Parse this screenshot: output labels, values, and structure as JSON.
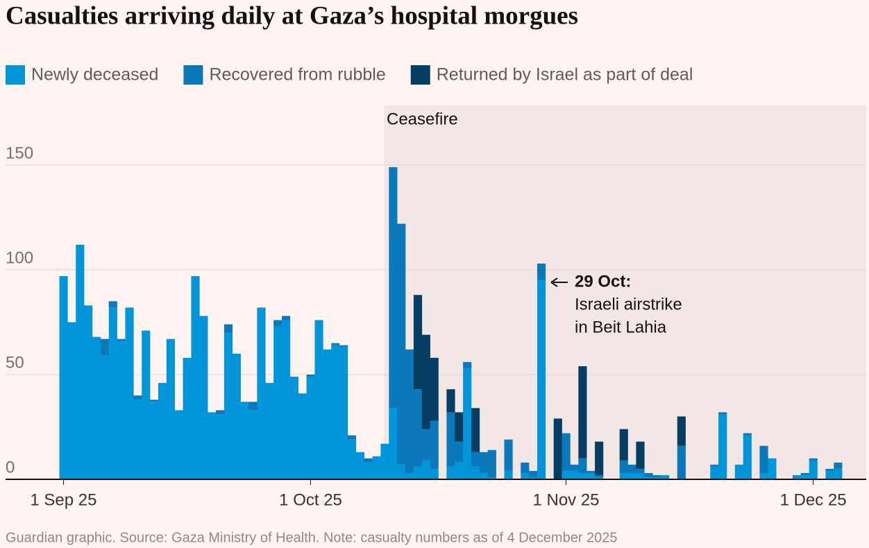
{
  "chart_data": {
    "type": "stacked_bar",
    "title": "Casualties arriving daily at Gaza’s hospital morgues",
    "shaded_label": "Ceasefire",
    "annotation": {
      "title": "29 Oct:",
      "lines": [
        "Israeli airstrike",
        "in Beit Lahia"
      ]
    },
    "source": "Guardian graphic. Source: Gaza Ministry of Health. Note: casualty numbers as of 4 December 2025",
    "categories": [
      "1 Sep 25",
      null,
      null,
      null,
      null,
      null,
      null,
      null,
      null,
      null,
      null,
      null,
      null,
      null,
      null,
      null,
      null,
      null,
      null,
      null,
      null,
      null,
      null,
      null,
      null,
      null,
      null,
      null,
      null,
      null,
      "1 Oct 25",
      null,
      null,
      null,
      null,
      null,
      null,
      null,
      null,
      null,
      null,
      null,
      null,
      null,
      null,
      null,
      null,
      null,
      null,
      null,
      null,
      null,
      null,
      null,
      null,
      null,
      null,
      null,
      null,
      null,
      null,
      "1 Nov 25",
      null,
      null,
      null,
      null,
      null,
      null,
      null,
      null,
      null,
      null,
      null,
      null,
      null,
      null,
      null,
      null,
      null,
      null,
      null,
      null,
      null,
      null,
      null,
      null,
      null,
      null,
      null,
      null,
      null,
      "1 Dec 25",
      null,
      null,
      null
    ],
    "series": [
      {
        "name": "Newly deceased",
        "color": "#0096d9",
        "values": [
          97,
          75,
          112,
          83,
          68,
          59,
          82,
          66,
          82,
          38,
          71,
          37,
          46,
          67,
          33,
          58,
          97,
          78,
          32,
          31,
          70,
          60,
          37,
          33,
          82,
          46,
          73,
          76,
          49,
          41,
          49,
          76,
          62,
          64,
          63,
          19,
          13,
          8,
          11,
          17,
          34,
          7,
          3,
          6,
          9,
          5,
          0,
          6,
          8,
          53,
          6,
          3,
          1,
          0,
          4,
          0,
          3,
          1,
          95,
          0,
          0,
          4,
          4,
          3,
          3,
          1,
          0,
          0,
          3,
          3,
          3,
          1,
          1,
          2,
          0,
          0,
          0,
          0,
          0,
          6,
          31,
          0,
          7,
          21,
          0,
          3,
          10,
          0,
          0,
          2,
          2,
          9,
          0,
          4,
          5
        ]
      },
      {
        "name": "Recovered from rubble",
        "color": "#0a78b9",
        "values": [
          0,
          0,
          0,
          0,
          0,
          8,
          3,
          1,
          0,
          2,
          0,
          1,
          0,
          0,
          0,
          0,
          0,
          0,
          0,
          2,
          4,
          0,
          0,
          4,
          0,
          0,
          3,
          2,
          0,
          0,
          1,
          0,
          0,
          1,
          1,
          2,
          0,
          2,
          0,
          0,
          115,
          115,
          59,
          37,
          15,
          23,
          0,
          26,
          10,
          3,
          7,
          10,
          13,
          0,
          15,
          0,
          5,
          3,
          8,
          0,
          0,
          18,
          3,
          7,
          1,
          1,
          0,
          0,
          6,
          4,
          2,
          2,
          1,
          0,
          0,
          16,
          0,
          0,
          0,
          1,
          1,
          0,
          0,
          1,
          0,
          13,
          0,
          0,
          0,
          0,
          1,
          1,
          0,
          1,
          3
        ]
      },
      {
        "name": "Returned by Israel as part of deal",
        "color": "#063d63",
        "values": [
          0,
          0,
          0,
          0,
          0,
          0,
          0,
          0,
          0,
          0,
          0,
          0,
          0,
          0,
          0,
          0,
          0,
          0,
          0,
          0,
          0,
          0,
          0,
          0,
          0,
          0,
          0,
          0,
          0,
          0,
          0,
          0,
          0,
          0,
          0,
          0,
          0,
          0,
          0,
          0,
          0,
          0,
          0,
          45,
          45,
          30,
          0,
          11,
          14,
          0,
          21,
          0,
          0,
          0,
          0,
          0,
          0,
          0,
          0,
          0,
          29,
          0,
          0,
          44,
          0,
          16,
          0,
          0,
          15,
          0,
          13,
          0,
          0,
          0,
          0,
          14,
          0,
          0,
          0,
          0,
          0,
          0,
          0,
          0,
          0,
          0,
          0,
          0,
          0,
          0,
          0,
          0,
          0,
          0,
          0
        ]
      }
    ],
    "ylim": [
      0,
      160
    ],
    "yticks": [
      0,
      50,
      100,
      150
    ],
    "grid": true
  }
}
